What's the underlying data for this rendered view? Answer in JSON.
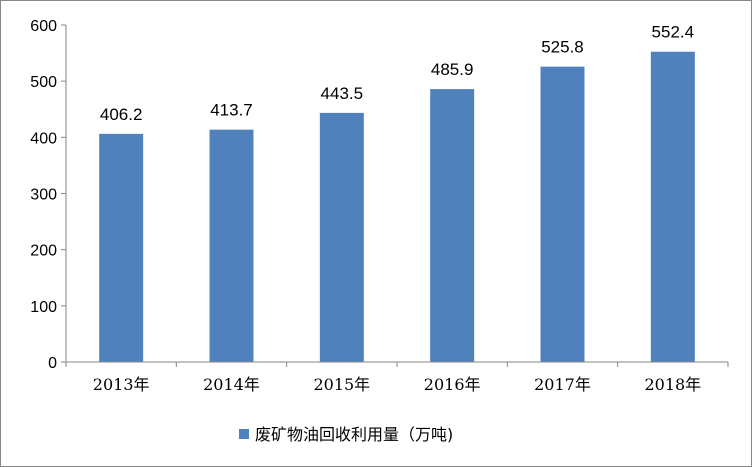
{
  "chart_data": {
    "type": "bar",
    "categories": [
      "2013年",
      "2014年",
      "2015年",
      "2016年",
      "2017年",
      "2018年"
    ],
    "series": [
      {
        "name": "废矿物油回收利用量（万吨)",
        "values": [
          406.2,
          413.7,
          443.5,
          485.9,
          525.8,
          552.4
        ],
        "color": "#4F81BD"
      }
    ],
    "ylim": [
      0,
      600
    ],
    "yticks": [
      0,
      100,
      200,
      300,
      400,
      500,
      600
    ],
    "grid": false,
    "legend": "bottom",
    "data_labels": true
  }
}
